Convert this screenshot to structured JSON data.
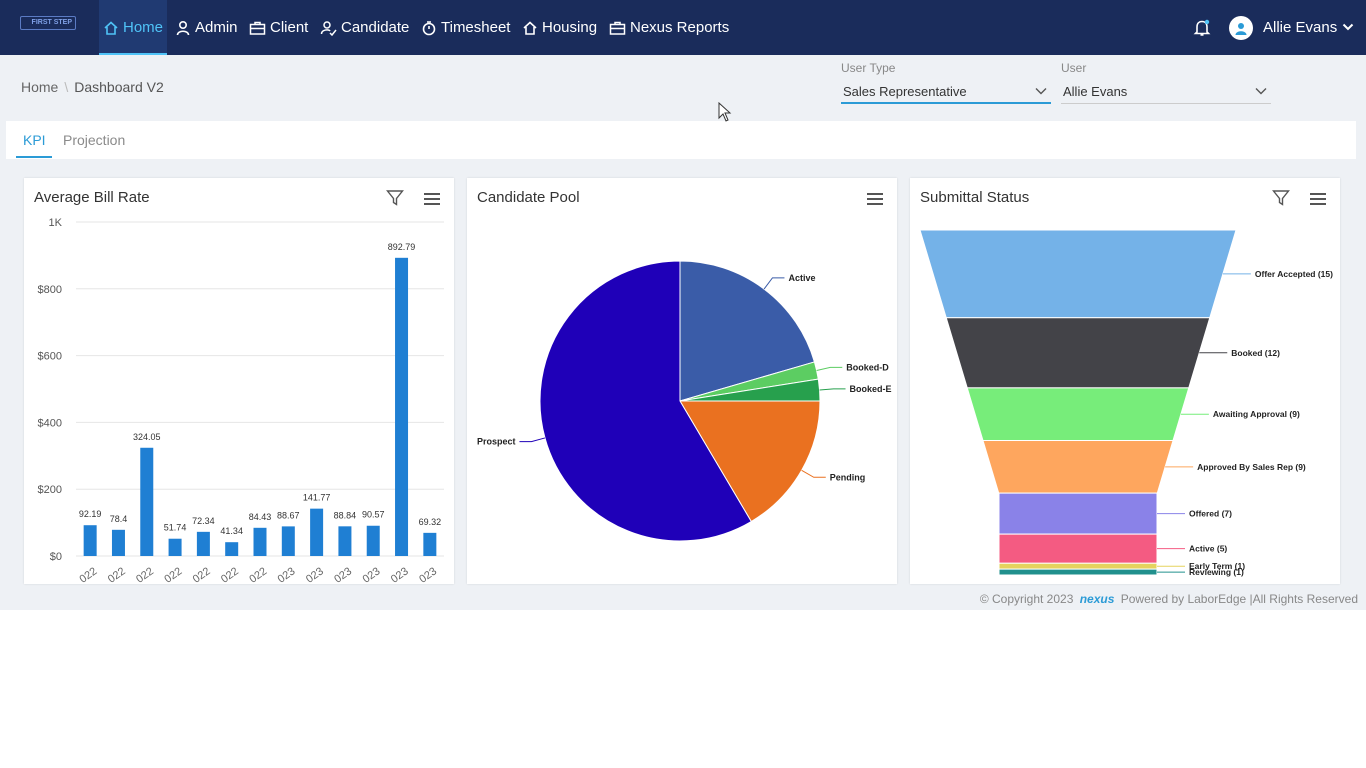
{
  "nav": {
    "logo_text": "FIRST STEP",
    "items": [
      {
        "label": "Home"
      },
      {
        "label": "Admin"
      },
      {
        "label": "Client"
      },
      {
        "label": "Candidate"
      },
      {
        "label": "Timesheet"
      },
      {
        "label": "Housing"
      },
      {
        "label": "Nexus Reports"
      }
    ],
    "user_name": "Allie Evans"
  },
  "breadcrumb": {
    "home": "Home",
    "sep": "\\",
    "current": "Dashboard V2"
  },
  "filters": {
    "user_type_label": "User Type",
    "user_type_value": "Sales Representative",
    "user_label": "User",
    "user_value": "Allie Evans"
  },
  "tabs": [
    {
      "label": "KPI"
    },
    {
      "label": "Projection"
    }
  ],
  "cards": {
    "bill_rate_title": "Average Bill Rate",
    "candidate_pool_title": "Candidate Pool",
    "submittal_title": "Submittal Status"
  },
  "footer": {
    "copyright": "© Copyright 2023",
    "brand": "nexus",
    "powered": "Powered by LaborEdge |All Rights Reserved"
  },
  "colors": {
    "nav_bg": "#1a2c5b",
    "accent": "#2b9bd6",
    "bar": "#1f7fd3"
  },
  "chart_data": [
    {
      "type": "bar",
      "title": "Average Bill Rate",
      "categories": [
        "022",
        "022",
        "022",
        "022",
        "022",
        "022",
        "022",
        "023",
        "023",
        "023",
        "023",
        "023",
        "023"
      ],
      "values": [
        92.19,
        78.4,
        324.05,
        51.74,
        72.34,
        41.34,
        84.43,
        88.67,
        141.77,
        88.84,
        90.57,
        892.79,
        69.32
      ],
      "y_ticks": [
        "$0",
        "$200",
        "$400",
        "$600",
        "$800",
        "1K"
      ],
      "ylim": [
        0,
        1000
      ],
      "grid": true
    },
    {
      "type": "pie",
      "title": "Candidate Pool",
      "slices": [
        {
          "label": "Active",
          "value": 20.5,
          "color": "#3a5ca8"
        },
        {
          "label": "Booked-D",
          "value": 2,
          "color": "#5ccd62"
        },
        {
          "label": "Booked-E",
          "value": 2.5,
          "color": "#27a04d"
        },
        {
          "label": "Pending",
          "value": 16.5,
          "color": "#ea7120"
        },
        {
          "label": "Prospect",
          "value": 58.5,
          "color": "#1f00b8"
        }
      ]
    },
    {
      "type": "funnel",
      "title": "Submittal Status",
      "stages": [
        {
          "label": "Offer Accepted (15)",
          "value": 15,
          "color": "#74b2e8"
        },
        {
          "label": "Booked (12)",
          "value": 12,
          "color": "#434348"
        },
        {
          "label": "Awaiting Approval (9)",
          "value": 9,
          "color": "#77ed7a"
        },
        {
          "label": "Approved By Sales Rep (9)",
          "value": 9,
          "color": "#fea65e"
        },
        {
          "label": "Offered (7)",
          "value": 7,
          "color": "#8a82e8"
        },
        {
          "label": "Active (5)",
          "value": 5,
          "color": "#f45b82"
        },
        {
          "label": "Early Term (1)",
          "value": 1,
          "color": "#e5d35e"
        },
        {
          "label": "Reviewing (1)",
          "value": 1,
          "color": "#21908d"
        }
      ]
    }
  ]
}
